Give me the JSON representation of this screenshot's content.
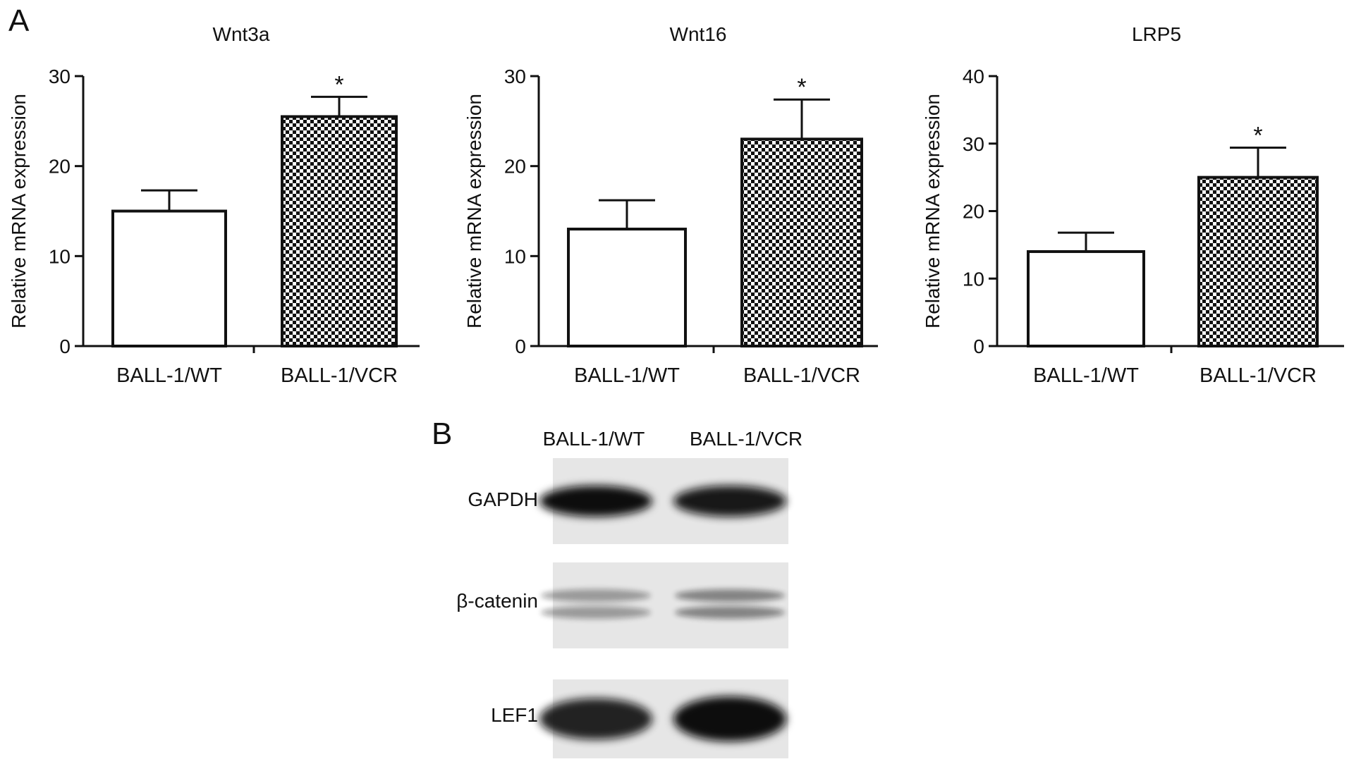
{
  "panel_labels": {
    "a": "A",
    "b": "B"
  },
  "chart_data": [
    {
      "type": "bar",
      "title": "Wnt3a",
      "ylabel": "Relative mRNA expression",
      "xlabel": "",
      "categories": [
        "BALL-1/WT",
        "BALL-1/VCR"
      ],
      "values": [
        15,
        25.5
      ],
      "errors": [
        2.3,
        2.2
      ],
      "significance": [
        "",
        "*"
      ],
      "ylim": [
        0,
        30
      ],
      "yticks": [
        0,
        10,
        20,
        30
      ],
      "grid": false
    },
    {
      "type": "bar",
      "title": "Wnt16",
      "ylabel": "Relative mRNA expression",
      "xlabel": "",
      "categories": [
        "BALL-1/WT",
        "BALL-1/VCR"
      ],
      "values": [
        13,
        23
      ],
      "errors": [
        3.2,
        4.4
      ],
      "significance": [
        "",
        "*"
      ],
      "ylim": [
        0,
        30
      ],
      "yticks": [
        0,
        10,
        20,
        30
      ],
      "grid": false
    },
    {
      "type": "bar",
      "title": "LRP5",
      "ylabel": "Relative mRNA expression",
      "xlabel": "",
      "categories": [
        "BALL-1/WT",
        "BALL-1/VCR"
      ],
      "values": [
        14,
        25
      ],
      "errors": [
        2.8,
        4.4
      ],
      "significance": [
        "",
        "*"
      ],
      "ylim": [
        0,
        40
      ],
      "yticks": [
        0,
        10,
        20,
        30,
        40
      ],
      "grid": false
    }
  ],
  "styles": {
    "wt_fill": "#ffffff",
    "vcr_fill": "checkerboard",
    "stroke": "#111111",
    "blot_background": "#e6e6e6",
    "band_color": "#0d0d0d"
  },
  "western_blot": {
    "lanes": [
      "BALL-1/WT",
      "BALL-1/VCR"
    ],
    "rows": [
      {
        "label": "GAPDH",
        "intensity": [
          0.95,
          0.9
        ]
      },
      {
        "label": "β-catenin",
        "intensity": [
          0.35,
          0.45
        ]
      },
      {
        "label": "LEF1",
        "intensity": [
          0.85,
          1.0
        ]
      }
    ]
  }
}
